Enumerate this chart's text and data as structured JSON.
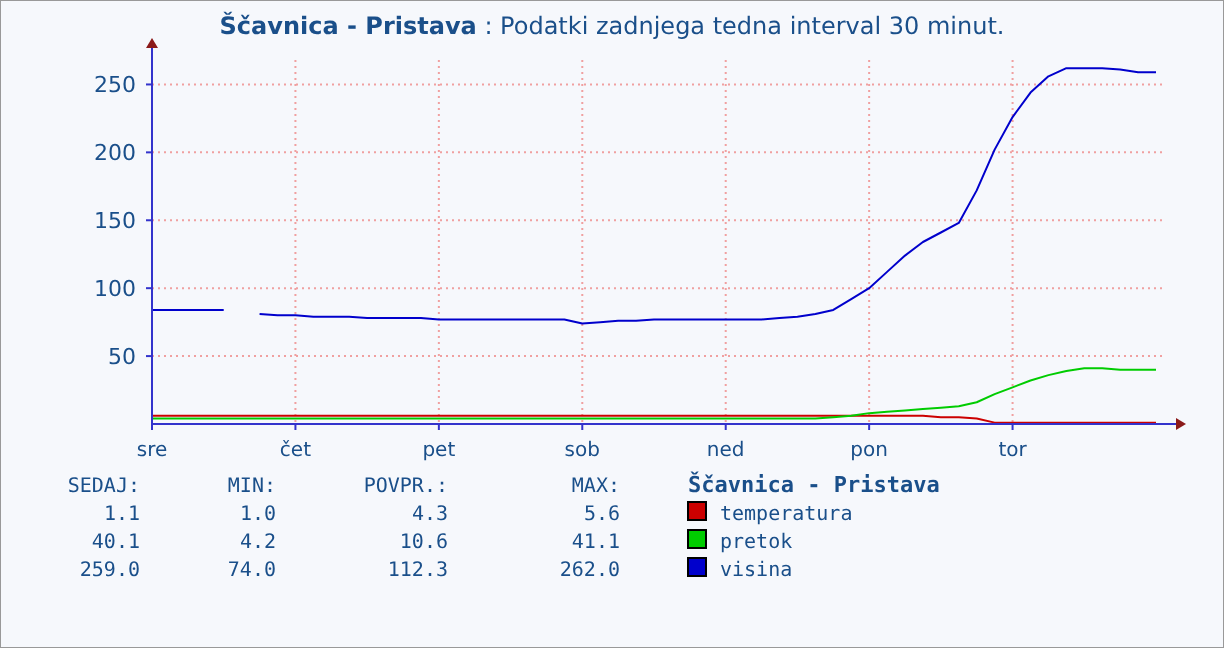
{
  "chart_data": {
    "type": "line",
    "title": "Ščavnica - Pristava",
    "subtitle": " : Podatki zadnjega tedna interval 30 minut.",
    "categories": [
      "sre",
      null,
      null,
      null,
      null,
      null,
      null,
      null,
      "čet",
      null,
      null,
      null,
      null,
      null,
      null,
      null,
      "pet",
      null,
      null,
      null,
      null,
      null,
      null,
      null,
      "sob",
      null,
      null,
      null,
      null,
      null,
      null,
      null,
      "ned",
      null,
      null,
      null,
      null,
      null,
      null,
      null,
      "pon",
      null,
      null,
      null,
      null,
      null,
      null,
      null,
      "tor",
      null,
      null,
      null,
      null,
      null,
      null,
      null,
      null
    ],
    "ylim": [
      0,
      268
    ],
    "yticks": [
      50,
      100,
      150,
      200,
      250
    ],
    "grid": true,
    "legend": "bottom",
    "legend_title": "Ščavnica - Pristava",
    "series": [
      {
        "name": "temperatura",
        "color": "#cc0000",
        "values": [
          6,
          6,
          6,
          6,
          6,
          6,
          6,
          6,
          6,
          6,
          6,
          6,
          6,
          6,
          6,
          6,
          6,
          6,
          6,
          6,
          6,
          6,
          6,
          6,
          6,
          6,
          6,
          6,
          6,
          6,
          6,
          6,
          6,
          6,
          6,
          6,
          6,
          6,
          6,
          6,
          6,
          6,
          6,
          6,
          5,
          5,
          4,
          1,
          1,
          1,
          1,
          1,
          1,
          1,
          1,
          1,
          1
        ]
      },
      {
        "name": "pretok",
        "color": "#00cc00",
        "values": [
          4,
          4,
          4,
          4,
          4,
          4,
          4,
          4,
          4,
          4,
          4,
          4,
          4,
          4,
          4,
          4,
          4,
          4,
          4,
          4,
          4,
          4,
          4,
          4,
          4,
          4,
          4,
          4,
          4,
          4,
          4,
          4,
          4,
          4,
          4,
          4,
          4,
          4,
          5,
          6,
          8,
          9,
          10,
          11,
          12,
          13,
          16,
          22,
          27,
          32,
          36,
          39,
          41,
          41,
          40,
          40,
          40
        ]
      },
      {
        "name": "visina",
        "color": "#0000cc",
        "values": [
          84,
          84,
          84,
          84,
          84,
          null,
          81,
          80,
          80,
          79,
          79,
          79,
          78,
          78,
          78,
          78,
          77,
          77,
          77,
          77,
          77,
          77,
          77,
          77,
          74,
          75,
          76,
          76,
          77,
          77,
          77,
          77,
          77,
          77,
          77,
          78,
          79,
          81,
          84,
          92,
          100,
          112,
          124,
          134,
          141,
          148,
          172,
          202,
          226,
          244,
          256,
          262,
          262,
          262,
          261,
          259,
          259
        ]
      }
    ],
    "annotations": [
      "SEDAJ:",
      "MIN:",
      "POVPR.:",
      "MAX:",
      "1.1",
      "1.0",
      "4.3",
      "5.6",
      "40.1",
      "4.2",
      "10.6",
      "41.1",
      "259.0",
      "74.0",
      "112.3",
      "262.0"
    ]
  }
}
